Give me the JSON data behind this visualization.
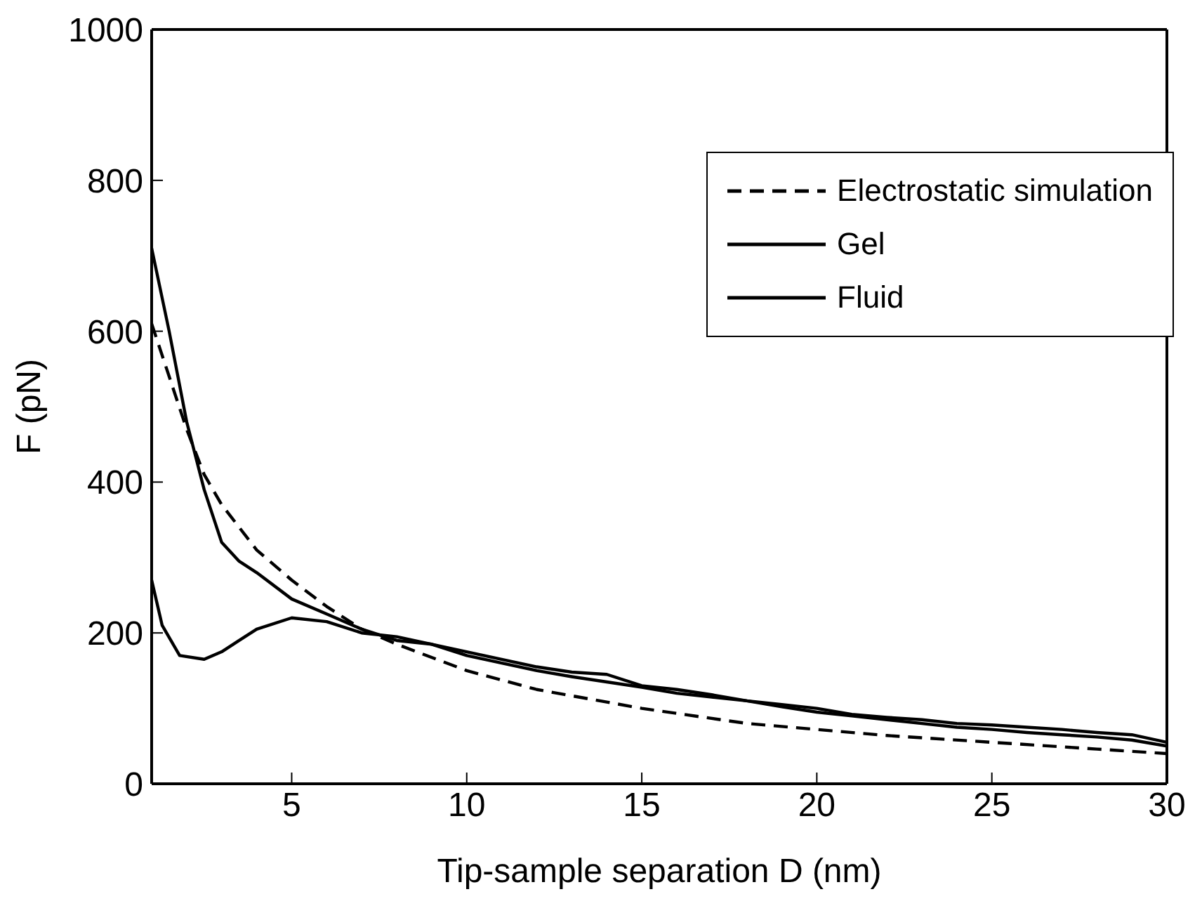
{
  "chart_data": {
    "type": "line",
    "xlabel": "Tip-sample separation D (nm)",
    "ylabel": "F (pN)",
    "xlim": [
      1,
      30
    ],
    "xticks": [
      5,
      10,
      15,
      20,
      25,
      30
    ],
    "ylim": [
      0,
      1000
    ],
    "yticks": [
      0,
      200,
      400,
      600,
      800,
      1000
    ],
    "legend": "top right",
    "marker": "none",
    "series": [
      {
        "name": "Electrostatic simulation",
        "color": "#000000",
        "line_style": "dashed",
        "x": [
          1,
          1.5,
          2,
          2.5,
          3,
          4,
          5,
          6,
          7,
          8,
          10,
          12,
          15,
          18,
          20,
          22,
          25,
          28,
          30
        ],
        "values": [
          610,
          540,
          470,
          410,
          370,
          310,
          270,
          235,
          205,
          185,
          150,
          125,
          100,
          80,
          72,
          64,
          55,
          46,
          40
        ]
      },
      {
        "name": "Gel",
        "color": "#000000",
        "line_style": "solid",
        "x": [
          1,
          1.5,
          2,
          2.5,
          3,
          3.5,
          4,
          5,
          6,
          7,
          8,
          9,
          10,
          11,
          12,
          13,
          14,
          15,
          16,
          17,
          18,
          19,
          20,
          21,
          22,
          23,
          24,
          25,
          26,
          27,
          28,
          29,
          30
        ],
        "values": [
          710,
          600,
          480,
          390,
          320,
          295,
          280,
          245,
          225,
          205,
          190,
          185,
          175,
          165,
          155,
          148,
          145,
          130,
          125,
          118,
          110,
          105,
          100,
          92,
          88,
          85,
          80,
          78,
          75,
          72,
          68,
          65,
          55
        ]
      },
      {
        "name": "Fluid",
        "color": "#000000",
        "line_style": "solid",
        "x": [
          1,
          1.3,
          1.8,
          2.5,
          3,
          3.5,
          4,
          5,
          6,
          7,
          8,
          9,
          10,
          11,
          12,
          13,
          14,
          15,
          16,
          17,
          18,
          19,
          20,
          21,
          22,
          23,
          24,
          25,
          26,
          27,
          28,
          29,
          30
        ],
        "values": [
          270,
          210,
          170,
          165,
          175,
          190,
          205,
          220,
          215,
          200,
          195,
          185,
          170,
          160,
          150,
          142,
          135,
          128,
          120,
          115,
          110,
          102,
          95,
          90,
          85,
          80,
          75,
          72,
          68,
          65,
          62,
          58,
          50
        ]
      }
    ]
  }
}
